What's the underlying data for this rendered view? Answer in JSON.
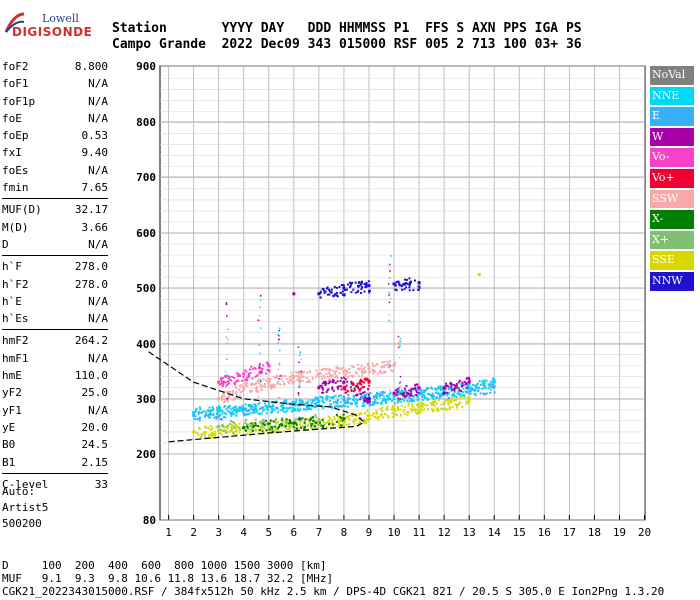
{
  "logo": {
    "line1": "Lowell",
    "line2": "DIGISONDE"
  },
  "header": {
    "row1": "Station       YYYY DAY   DDD HHMMSS P1  FFS S AXN PPS IGA PS",
    "row2": "Campo Grande  2022 Dec09 343 015000 RSF 005 2 713 100 03+ 36"
  },
  "params": [
    [
      [
        "foF2",
        "8.800"
      ],
      [
        "foF1",
        "N/A"
      ],
      [
        "foF1p",
        "N/A"
      ],
      [
        "foE",
        "N/A"
      ],
      [
        "foEp",
        "0.53"
      ],
      [
        "fxI",
        "9.40"
      ],
      [
        "foEs",
        "N/A"
      ],
      [
        "fmin",
        "7.65"
      ]
    ],
    [
      [
        "MUF(D)",
        "32.17"
      ],
      [
        "M(D)",
        "3.66"
      ],
      [
        "D",
        "N/A"
      ]
    ],
    [
      [
        "h`F",
        "278.0"
      ],
      [
        "h`F2",
        "278.0"
      ],
      [
        "h`E",
        "N/A"
      ],
      [
        "h`Es",
        "N/A"
      ]
    ],
    [
      [
        "hmF2",
        "264.2"
      ],
      [
        "hmF1",
        "N/A"
      ],
      [
        "hmE",
        "110.0"
      ],
      [
        "yF2",
        "25.0"
      ],
      [
        "yF1",
        "N/A"
      ],
      [
        "yE",
        "20.0"
      ],
      [
        "B0",
        "24.5"
      ],
      [
        "B1",
        "2.15"
      ]
    ],
    [
      [
        "C-level",
        "33"
      ]
    ]
  ],
  "auto": {
    "line1": "Auto:",
    "line2": "Artist5",
    "line3": "500200"
  },
  "footer": {
    "line1": "D     100  200  400  600  800 1000 1500 3000 [km]",
    "line2": "MUF   9.1  9.3  9.8 10.6 11.8 13.6 18.7 32.2 [MHz]",
    "line3": "CGK21_2022343015000.RSF / 384fx512h 50 kHz 2.5 km / DPS-4D CGK21 821 / 20.5 S 305.0 E Ion2Png 1.3.20"
  },
  "legend": [
    {
      "label": "NoVal",
      "color": "#808080"
    },
    {
      "label": "NNE",
      "color": "#00d8f8"
    },
    {
      "label": "E",
      "color": "#38b0f8"
    },
    {
      "label": "W",
      "color": "#a800a8"
    },
    {
      "label": "Vo-",
      "color": "#f840c8"
    },
    {
      "label": "Vo+",
      "color": "#f00030"
    },
    {
      "label": "SSW",
      "color": "#f8a8a8"
    },
    {
      "label": "X-",
      "color": "#008000"
    },
    {
      "label": "X+",
      "color": "#80c070"
    },
    {
      "label": "SSE",
      "color": "#d8d800"
    },
    {
      "label": "NNW",
      "color": "#2010d0"
    }
  ],
  "chart_data": {
    "type": "scatter",
    "xlabel": "",
    "ylabel": "",
    "x_ticks": [
      1,
      2,
      3,
      4,
      5,
      6,
      7,
      8,
      9,
      10,
      11,
      12,
      13,
      14,
      15,
      16,
      17,
      18,
      19,
      20
    ],
    "y_ticks": [
      80,
      200,
      300,
      400,
      500,
      600,
      700,
      800,
      900
    ],
    "ylim_top": 900,
    "y_axis_break": {
      "value": 80,
      "note": "bottom tick labeled 80"
    },
    "grid": true,
    "series": [
      {
        "name": "SSE",
        "color": "#d8d800",
        "points": [
          [
            2,
            240
          ],
          [
            3,
            243
          ],
          [
            4,
            246
          ],
          [
            5,
            250
          ],
          [
            6,
            254
          ],
          [
            7,
            258
          ],
          [
            8,
            262
          ],
          [
            9,
            270
          ],
          [
            10,
            280
          ],
          [
            11,
            286
          ],
          [
            12,
            292
          ],
          [
            13,
            300
          ],
          [
            13.4,
            525
          ]
        ]
      },
      {
        "name": "NNE",
        "color": "#00d8f8",
        "points": [
          [
            2,
            275
          ],
          [
            3,
            278
          ],
          [
            4,
            282
          ],
          [
            5,
            286
          ],
          [
            6,
            290
          ],
          [
            7,
            295
          ],
          [
            8,
            298
          ],
          [
            9,
            300
          ],
          [
            10,
            305
          ],
          [
            11,
            310
          ],
          [
            12,
            315
          ],
          [
            13,
            320
          ],
          [
            14,
            330
          ]
        ]
      },
      {
        "name": "E",
        "color": "#38b0f8",
        "points": [
          [
            2,
            270
          ],
          [
            4,
            280
          ],
          [
            6,
            290
          ],
          [
            8,
            298
          ],
          [
            10,
            305
          ],
          [
            12,
            312
          ],
          [
            14,
            322
          ]
        ]
      },
      {
        "name": "W",
        "color": "#a800a8",
        "points": [
          [
            7,
            320
          ],
          [
            8,
            330
          ],
          [
            9,
            300
          ],
          [
            10,
            310
          ],
          [
            11,
            320
          ],
          [
            12,
            320
          ],
          [
            13,
            330
          ],
          [
            6,
            490
          ],
          [
            9,
            505
          ],
          [
            11,
            510
          ]
        ]
      },
      {
        "name": "NNW",
        "color": "#2010d0",
        "points": [
          [
            7,
            490
          ],
          [
            8,
            500
          ],
          [
            9,
            505
          ],
          [
            10,
            508
          ],
          [
            11,
            510
          ],
          [
            9,
            300
          ],
          [
            12,
            310
          ]
        ]
      },
      {
        "name": "SSW",
        "color": "#f8a8a8",
        "points": [
          [
            3,
            300
          ],
          [
            4,
            320
          ],
          [
            5,
            330
          ],
          [
            6,
            340
          ],
          [
            7,
            345
          ],
          [
            8,
            350
          ],
          [
            9,
            355
          ],
          [
            10,
            360
          ]
        ]
      },
      {
        "name": "X+",
        "color": "#80c070",
        "points": [
          [
            3,
            250
          ],
          [
            5,
            255
          ],
          [
            7,
            262
          ]
        ]
      },
      {
        "name": "X-",
        "color": "#008000",
        "points": [
          [
            4,
            248
          ],
          [
            6,
            256
          ],
          [
            8,
            264
          ]
        ]
      },
      {
        "name": "Vo-",
        "color": "#f840c8",
        "points": [
          [
            3,
            330
          ],
          [
            4,
            345
          ],
          [
            5,
            360
          ]
        ]
      },
      {
        "name": "Vo+",
        "color": "#f00030",
        "points": [
          [
            8,
            320
          ],
          [
            9,
            330
          ]
        ]
      }
    ],
    "profile_curve": {
      "points": [
        [
          0.2,
          385
        ],
        [
          2,
          330
        ],
        [
          4,
          300
        ],
        [
          6,
          290
        ],
        [
          7.5,
          285
        ],
        [
          8.5,
          270
        ],
        [
          8.8,
          258
        ],
        [
          8.5,
          250
        ],
        [
          7,
          245
        ],
        [
          5,
          238
        ],
        [
          3,
          230
        ],
        [
          1,
          222
        ]
      ]
    }
  }
}
